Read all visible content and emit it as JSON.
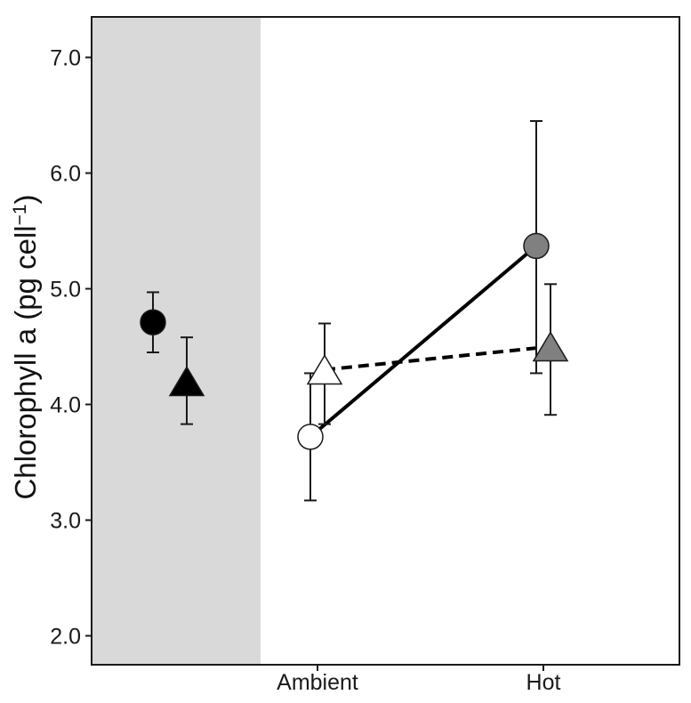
{
  "chart_data": {
    "type": "scatter",
    "ylabel": "Chlorophyll a (pg cell",
    "ylabel_sup": "−1",
    "ylabel_close": ")",
    "ylim": [
      1.75,
      7.35
    ],
    "yticks": [
      2.0,
      3.0,
      4.0,
      5.0,
      6.0,
      7.0
    ],
    "ytick_labels": [
      "2.0",
      "3.0",
      "4.0",
      "5.0",
      "6.0",
      "7.0"
    ],
    "categories": [
      "Ambient",
      "Hot"
    ],
    "grid": false,
    "shaded_region": {
      "color": "#d9d9d9"
    },
    "baseline_points": [
      {
        "marker": "circle",
        "color": "#000000",
        "y": 4.71,
        "err_low": 4.45,
        "err_high": 4.97
      },
      {
        "marker": "triangle",
        "color": "#000000",
        "y": 4.2,
        "err_low": 3.83,
        "err_high": 4.58
      }
    ],
    "series": [
      {
        "marker": "circle",
        "line_style": "solid",
        "points": [
          {
            "x": "Ambient",
            "y": 3.72,
            "err_low": 3.17,
            "err_high": 4.27,
            "color": "#ffffff"
          },
          {
            "x": "Hot",
            "y": 5.37,
            "err_low": 4.27,
            "err_high": 6.45,
            "color": "#808080"
          }
        ]
      },
      {
        "marker": "triangle",
        "line_style": "dashed",
        "points": [
          {
            "x": "Ambient",
            "y": 4.3,
            "err_low": 3.83,
            "err_high": 4.7,
            "color": "#ffffff"
          },
          {
            "x": "Hot",
            "y": 4.5,
            "err_low": 3.91,
            "err_high": 5.04,
            "color": "#808080"
          }
        ]
      }
    ]
  }
}
